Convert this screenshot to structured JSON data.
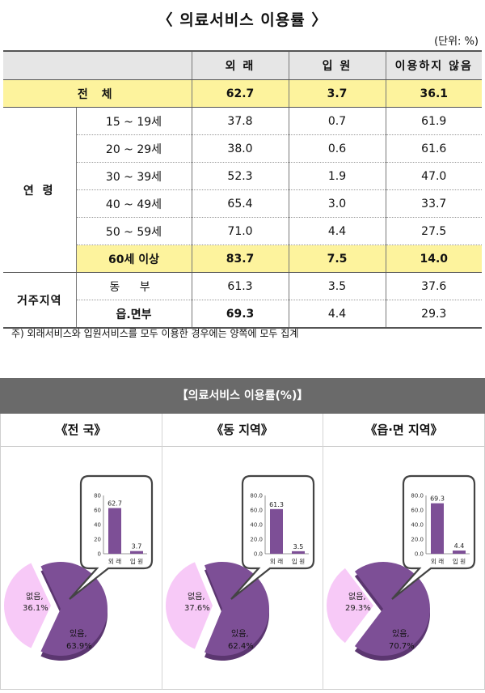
{
  "title": "〈 의료서비스 이용률 〉",
  "unit": "(단위: %)",
  "table": {
    "headers": [
      "외 래",
      "입 원",
      "이용하지 않음"
    ],
    "total": {
      "label": "전 체",
      "values": [
        "62.7",
        "3.7",
        "36.1"
      ]
    },
    "age_group_label": "연 령",
    "age_rows": [
      {
        "label": "15 ~ 19세",
        "values": [
          "37.8",
          "0.7",
          "61.9"
        ]
      },
      {
        "label": "20 ~ 29세",
        "values": [
          "38.0",
          "0.6",
          "61.6"
        ]
      },
      {
        "label": "30 ~ 39세",
        "values": [
          "52.3",
          "1.9",
          "47.0"
        ]
      },
      {
        "label": "40 ~ 49세",
        "values": [
          "65.4",
          "3.0",
          "33.7"
        ]
      },
      {
        "label": "50 ~ 59세",
        "values": [
          "71.0",
          "4.4",
          "27.5"
        ]
      },
      {
        "label": "60세 이상",
        "values": [
          "83.7",
          "7.5",
          "14.0"
        ]
      }
    ],
    "region_group_label": "거주지역",
    "region_rows": [
      {
        "label": "동 부",
        "values": [
          "61.3",
          "3.5",
          "37.6"
        ]
      },
      {
        "label": "읍.면부",
        "values": [
          "69.3",
          "4.4",
          "29.3"
        ]
      }
    ]
  },
  "footnote": "주) 외래서비스와 입원서비스를 모두 이용한 경우에는 양쪽에 모두 집계",
  "chart_section": {
    "banner": "【의료서비스 이용률(%)】"
  },
  "colors": {
    "pie_yes": "#7d4f96",
    "pie_no": "#f7c9f7",
    "bar": "#7d4f96",
    "highlight": "#fdf39d"
  },
  "chart_data": [
    {
      "type": "pie",
      "title": "《전 국》",
      "pie": {
        "labels": [
          "없음,",
          "있음,"
        ],
        "values": [
          36.1,
          63.9
        ],
        "value_labels": [
          "36.1%",
          "63.9%"
        ]
      },
      "bar": {
        "type": "bar",
        "categories": [
          "외 래",
          "입 원"
        ],
        "values": [
          62.7,
          3.7
        ],
        "value_labels": [
          "62.7",
          "3.7"
        ],
        "ylim": [
          0,
          80
        ],
        "ticks": [
          "0",
          "20",
          "40",
          "60",
          "80"
        ]
      }
    },
    {
      "type": "pie",
      "title": "《동 지역》",
      "pie": {
        "labels": [
          "없음,",
          "있음,"
        ],
        "values": [
          37.6,
          62.4
        ],
        "value_labels": [
          "37.6%",
          "62.4%"
        ]
      },
      "bar": {
        "type": "bar",
        "categories": [
          "외 래",
          "입 원"
        ],
        "values": [
          61.3,
          3.5
        ],
        "value_labels": [
          "61.3",
          "3.5"
        ],
        "ylim": [
          0,
          80
        ],
        "ticks": [
          "0.0",
          "20.0",
          "40.0",
          "60.0",
          "80.0"
        ]
      }
    },
    {
      "type": "pie",
      "title": "《읍·면 지역》",
      "pie": {
        "labels": [
          "없음,",
          "있음,"
        ],
        "values": [
          29.3,
          70.7
        ],
        "value_labels": [
          "29.3%",
          "70.7%"
        ]
      },
      "bar": {
        "type": "bar",
        "categories": [
          "외 래",
          "입 원"
        ],
        "values": [
          69.3,
          4.4
        ],
        "value_labels": [
          "69.3",
          "4.4"
        ],
        "ylim": [
          0,
          80
        ],
        "ticks": [
          "0.0",
          "20.0",
          "40.0",
          "60.0",
          "80.0"
        ]
      }
    }
  ]
}
